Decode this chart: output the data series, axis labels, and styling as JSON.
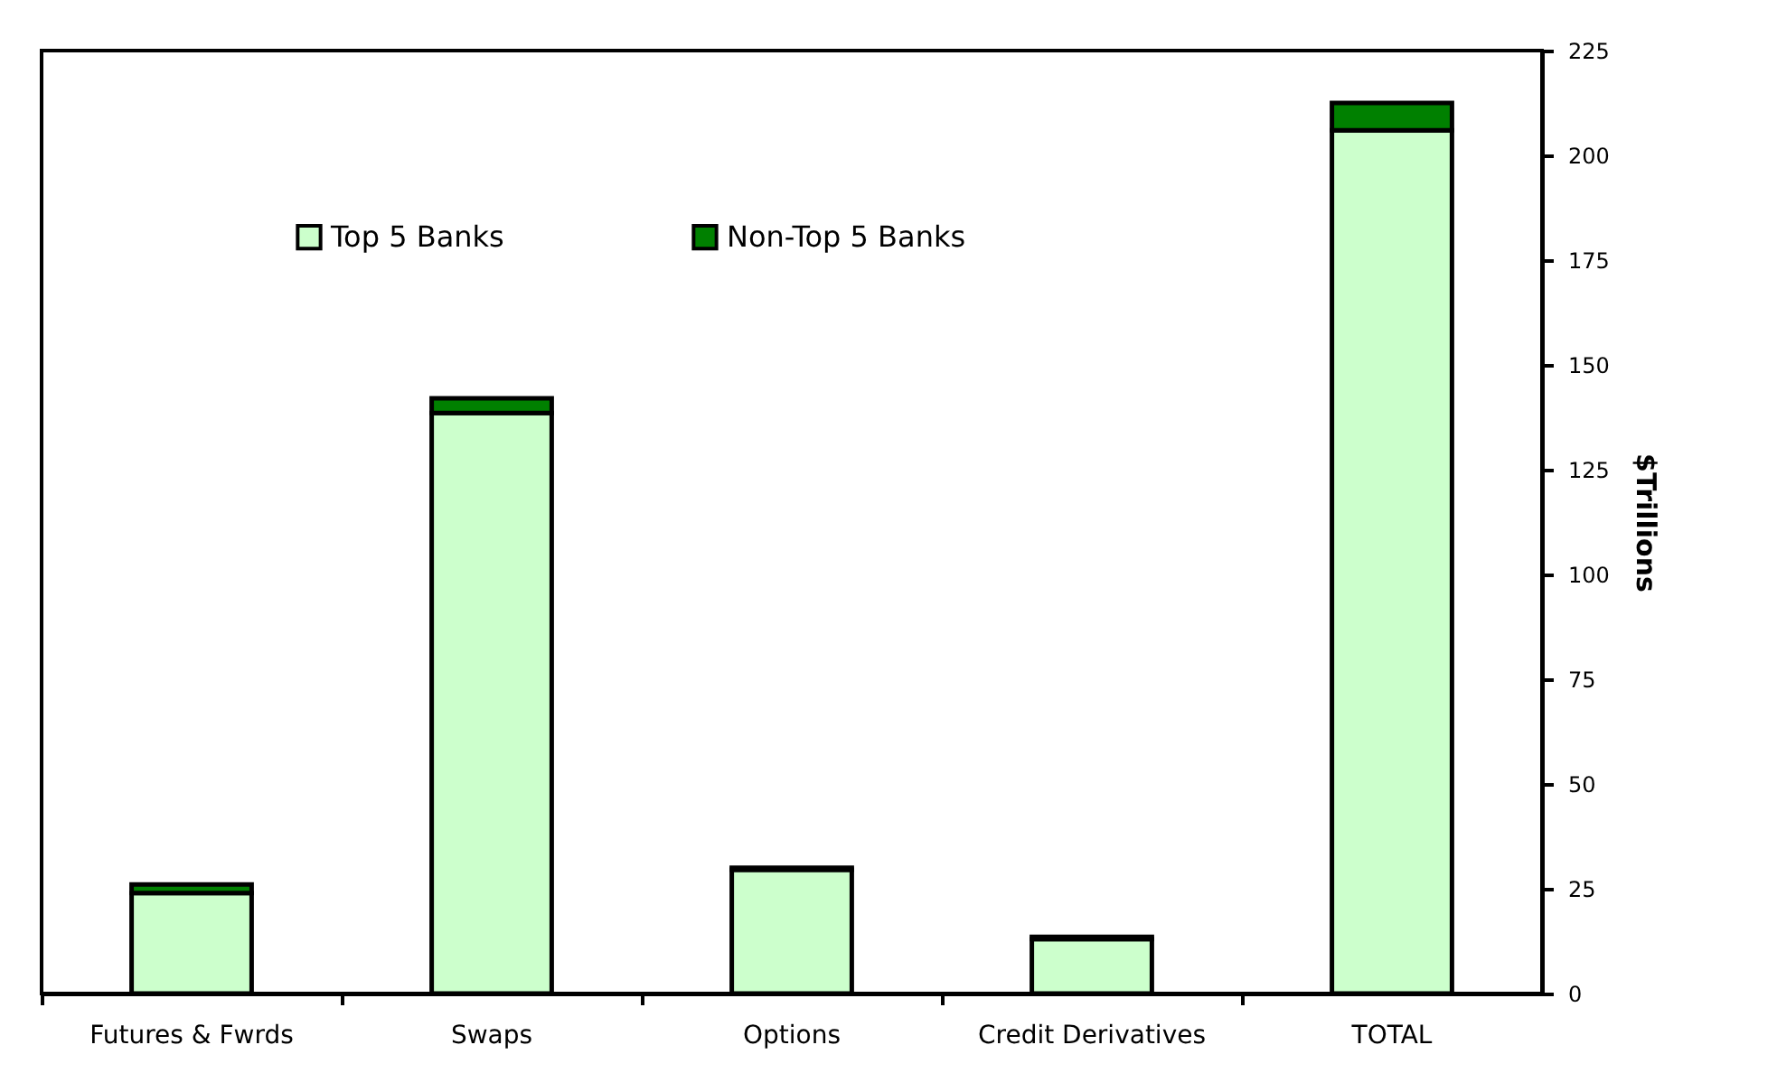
{
  "chart_data": {
    "type": "bar",
    "stacked": true,
    "ylabel": "$Trillions",
    "categories": [
      "Futures & Fwrds",
      "Swaps",
      "Options",
      "Credit Derivatives",
      "TOTAL"
    ],
    "series": [
      {
        "name": "Top 5 Banks",
        "color": "#ccffcc",
        "values": [
          24,
          138.5,
          29.5,
          13,
          206
        ]
      },
      {
        "name": "Non-Top 5 Banks",
        "color": "#008000",
        "values": [
          2,
          3.5,
          0.5,
          0.5,
          6.5
        ]
      }
    ],
    "ylim": [
      0,
      225
    ],
    "yticks": [
      0,
      25,
      50,
      75,
      100,
      125,
      150,
      175,
      200,
      225
    ],
    "grid": false,
    "legend": "top left"
  }
}
